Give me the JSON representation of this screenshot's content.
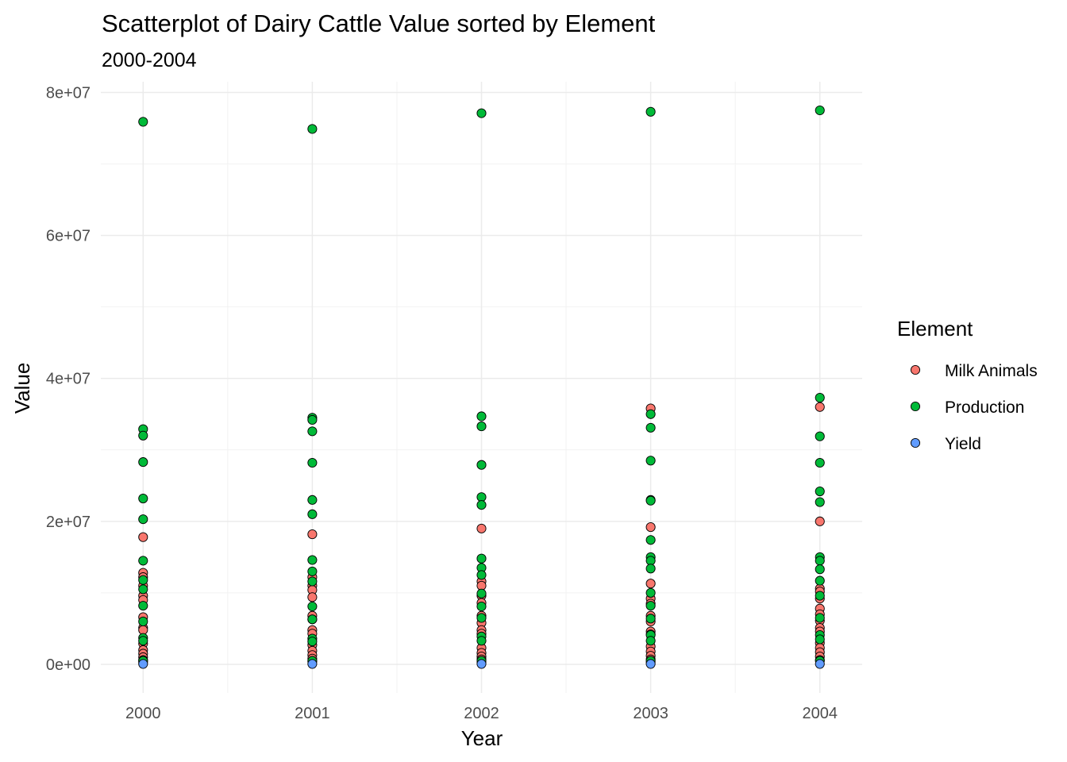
{
  "chart_data": {
    "type": "scatter",
    "title": "Scatterplot of Dairy Cattle Value sorted by Element",
    "subtitle": "2000-2004",
    "xlabel": "Year",
    "ylabel": "Value",
    "x_ticks": [
      "2000",
      "2001",
      "2002",
      "2003",
      "2004"
    ],
    "y_ticks": [
      "0e+00",
      "2e+07",
      "4e+07",
      "6e+07",
      "8e+07"
    ],
    "y_tick_values": [
      0,
      20000000,
      40000000,
      60000000,
      80000000
    ],
    "xlim": [
      1999.75,
      2004.25
    ],
    "ylim": [
      -4000000,
      81500000
    ],
    "grid": true,
    "legend": {
      "title": "Element",
      "position": "right"
    },
    "series": [
      {
        "name": "Milk Animals",
        "color": "#F8766D",
        "points": [
          {
            "x": 2000,
            "y": 17800000
          },
          {
            "x": 2000,
            "y": 12800000
          },
          {
            "x": 2000,
            "y": 12200000
          },
          {
            "x": 2000,
            "y": 11000000
          },
          {
            "x": 2000,
            "y": 9600000
          },
          {
            "x": 2000,
            "y": 9000000
          },
          {
            "x": 2000,
            "y": 6600000
          },
          {
            "x": 2000,
            "y": 5100000
          },
          {
            "x": 2000,
            "y": 4800000
          },
          {
            "x": 2000,
            "y": 2900000
          },
          {
            "x": 2000,
            "y": 2000000
          },
          {
            "x": 2000,
            "y": 1500000
          },
          {
            "x": 2000,
            "y": 1000000
          },
          {
            "x": 2000,
            "y": 600000
          },
          {
            "x": 2000,
            "y": 300000
          },
          {
            "x": 2001,
            "y": 18200000
          },
          {
            "x": 2001,
            "y": 12200000
          },
          {
            "x": 2001,
            "y": 11000000
          },
          {
            "x": 2001,
            "y": 10400000
          },
          {
            "x": 2001,
            "y": 9400000
          },
          {
            "x": 2001,
            "y": 6800000
          },
          {
            "x": 2001,
            "y": 6300000
          },
          {
            "x": 2001,
            "y": 4800000
          },
          {
            "x": 2001,
            "y": 4300000
          },
          {
            "x": 2001,
            "y": 2700000
          },
          {
            "x": 2001,
            "y": 1900000
          },
          {
            "x": 2001,
            "y": 1300000
          },
          {
            "x": 2001,
            "y": 800000
          },
          {
            "x": 2001,
            "y": 400000
          },
          {
            "x": 2002,
            "y": 19000000
          },
          {
            "x": 2002,
            "y": 11600000
          },
          {
            "x": 2002,
            "y": 11000000
          },
          {
            "x": 2002,
            "y": 9600000
          },
          {
            "x": 2002,
            "y": 8600000
          },
          {
            "x": 2002,
            "y": 6800000
          },
          {
            "x": 2002,
            "y": 5800000
          },
          {
            "x": 2002,
            "y": 4800000
          },
          {
            "x": 2002,
            "y": 4300000
          },
          {
            "x": 2002,
            "y": 2300000
          },
          {
            "x": 2002,
            "y": 1600000
          },
          {
            "x": 2002,
            "y": 1100000
          },
          {
            "x": 2002,
            "y": 700000
          },
          {
            "x": 2002,
            "y": 300000
          },
          {
            "x": 2003,
            "y": 35800000
          },
          {
            "x": 2003,
            "y": 19200000
          },
          {
            "x": 2003,
            "y": 11300000
          },
          {
            "x": 2003,
            "y": 9200000
          },
          {
            "x": 2003,
            "y": 8500000
          },
          {
            "x": 2003,
            "y": 6800000
          },
          {
            "x": 2003,
            "y": 6000000
          },
          {
            "x": 2003,
            "y": 4600000
          },
          {
            "x": 2003,
            "y": 4200000
          },
          {
            "x": 2003,
            "y": 2500000
          },
          {
            "x": 2003,
            "y": 1800000
          },
          {
            "x": 2003,
            "y": 1200000
          },
          {
            "x": 2003,
            "y": 700000
          },
          {
            "x": 2003,
            "y": 300000
          },
          {
            "x": 2004,
            "y": 36000000
          },
          {
            "x": 2004,
            "y": 20000000
          },
          {
            "x": 2004,
            "y": 10600000
          },
          {
            "x": 2004,
            "y": 10200000
          },
          {
            "x": 2004,
            "y": 9200000
          },
          {
            "x": 2004,
            "y": 7800000
          },
          {
            "x": 2004,
            "y": 7000000
          },
          {
            "x": 2004,
            "y": 6100000
          },
          {
            "x": 2004,
            "y": 5100000
          },
          {
            "x": 2004,
            "y": 4600000
          },
          {
            "x": 2004,
            "y": 3000000
          },
          {
            "x": 2004,
            "y": 2300000
          },
          {
            "x": 2004,
            "y": 1700000
          },
          {
            "x": 2004,
            "y": 1100000
          },
          {
            "x": 2004,
            "y": 600000
          }
        ]
      },
      {
        "name": "Production",
        "color": "#00BA38",
        "points": [
          {
            "x": 2000,
            "y": 75900000
          },
          {
            "x": 2000,
            "y": 32900000
          },
          {
            "x": 2000,
            "y": 32000000
          },
          {
            "x": 2000,
            "y": 28300000
          },
          {
            "x": 2000,
            "y": 23200000
          },
          {
            "x": 2000,
            "y": 20300000
          },
          {
            "x": 2000,
            "y": 14500000
          },
          {
            "x": 2000,
            "y": 11800000
          },
          {
            "x": 2000,
            "y": 10500000
          },
          {
            "x": 2000,
            "y": 8200000
          },
          {
            "x": 2000,
            "y": 6000000
          },
          {
            "x": 2000,
            "y": 3700000
          },
          {
            "x": 2000,
            "y": 3300000
          },
          {
            "x": 2000,
            "y": 500000
          },
          {
            "x": 2001,
            "y": 74900000
          },
          {
            "x": 2001,
            "y": 34500000
          },
          {
            "x": 2001,
            "y": 34200000
          },
          {
            "x": 2001,
            "y": 32600000
          },
          {
            "x": 2001,
            "y": 28200000
          },
          {
            "x": 2001,
            "y": 23000000
          },
          {
            "x": 2001,
            "y": 21000000
          },
          {
            "x": 2001,
            "y": 14600000
          },
          {
            "x": 2001,
            "y": 13000000
          },
          {
            "x": 2001,
            "y": 11600000
          },
          {
            "x": 2001,
            "y": 8100000
          },
          {
            "x": 2001,
            "y": 6300000
          },
          {
            "x": 2001,
            "y": 3600000
          },
          {
            "x": 2001,
            "y": 3200000
          },
          {
            "x": 2001,
            "y": 500000
          },
          {
            "x": 2002,
            "y": 77100000
          },
          {
            "x": 2002,
            "y": 34700000
          },
          {
            "x": 2002,
            "y": 33300000
          },
          {
            "x": 2002,
            "y": 27900000
          },
          {
            "x": 2002,
            "y": 23400000
          },
          {
            "x": 2002,
            "y": 22300000
          },
          {
            "x": 2002,
            "y": 14800000
          },
          {
            "x": 2002,
            "y": 13500000
          },
          {
            "x": 2002,
            "y": 12500000
          },
          {
            "x": 2002,
            "y": 9900000
          },
          {
            "x": 2002,
            "y": 8100000
          },
          {
            "x": 2002,
            "y": 6500000
          },
          {
            "x": 2002,
            "y": 3900000
          },
          {
            "x": 2002,
            "y": 3300000
          },
          {
            "x": 2002,
            "y": 500000
          },
          {
            "x": 2003,
            "y": 77300000
          },
          {
            "x": 2003,
            "y": 35000000
          },
          {
            "x": 2003,
            "y": 33100000
          },
          {
            "x": 2003,
            "y": 28500000
          },
          {
            "x": 2003,
            "y": 23000000
          },
          {
            "x": 2003,
            "y": 22900000
          },
          {
            "x": 2003,
            "y": 17400000
          },
          {
            "x": 2003,
            "y": 15000000
          },
          {
            "x": 2003,
            "y": 14500000
          },
          {
            "x": 2003,
            "y": 13400000
          },
          {
            "x": 2003,
            "y": 10000000
          },
          {
            "x": 2003,
            "y": 8200000
          },
          {
            "x": 2003,
            "y": 6400000
          },
          {
            "x": 2003,
            "y": 4100000
          },
          {
            "x": 2003,
            "y": 3300000
          },
          {
            "x": 2003,
            "y": 500000
          },
          {
            "x": 2004,
            "y": 77500000
          },
          {
            "x": 2004,
            "y": 37300000
          },
          {
            "x": 2004,
            "y": 31900000
          },
          {
            "x": 2004,
            "y": 28200000
          },
          {
            "x": 2004,
            "y": 24200000
          },
          {
            "x": 2004,
            "y": 22700000
          },
          {
            "x": 2004,
            "y": 15000000
          },
          {
            "x": 2004,
            "y": 14500000
          },
          {
            "x": 2004,
            "y": 13300000
          },
          {
            "x": 2004,
            "y": 11700000
          },
          {
            "x": 2004,
            "y": 9600000
          },
          {
            "x": 2004,
            "y": 6500000
          },
          {
            "x": 2004,
            "y": 4100000
          },
          {
            "x": 2004,
            "y": 3500000
          },
          {
            "x": 2004,
            "y": 500000
          }
        ]
      },
      {
        "name": "Yield",
        "color": "#619CFF",
        "points": [
          {
            "x": 2000,
            "y": 60000
          },
          {
            "x": 2001,
            "y": 60000
          },
          {
            "x": 2002,
            "y": 60000
          },
          {
            "x": 2003,
            "y": 60000
          },
          {
            "x": 2004,
            "y": 60000
          }
        ]
      }
    ]
  }
}
